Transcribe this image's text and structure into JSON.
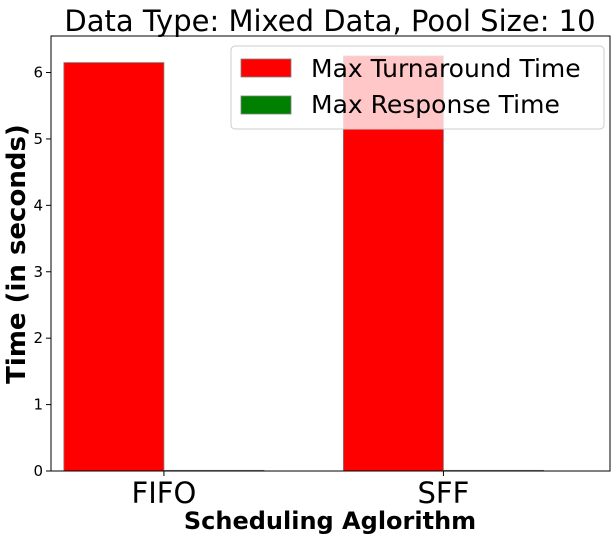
{
  "chart_data": {
    "type": "bar",
    "title": "Data Type: Mixed Data, Pool Size: 10",
    "xlabel": "Scheduling Aglorithm",
    "ylabel": "Time (in seconds)",
    "categories": [
      "FIFO",
      "SFF"
    ],
    "series": [
      {
        "name": "Max Turnaround Time",
        "color": "#ff0000",
        "values": [
          6.15,
          6.25
        ]
      },
      {
        "name": "Max Response Time",
        "color": "#008000",
        "values": [
          0.01,
          0.01
        ]
      }
    ],
    "yticks": [
      0,
      1,
      2,
      3,
      4,
      5,
      6
    ],
    "ylim": [
      0,
      6.55
    ],
    "grid": false,
    "legend_position": "top-right"
  }
}
